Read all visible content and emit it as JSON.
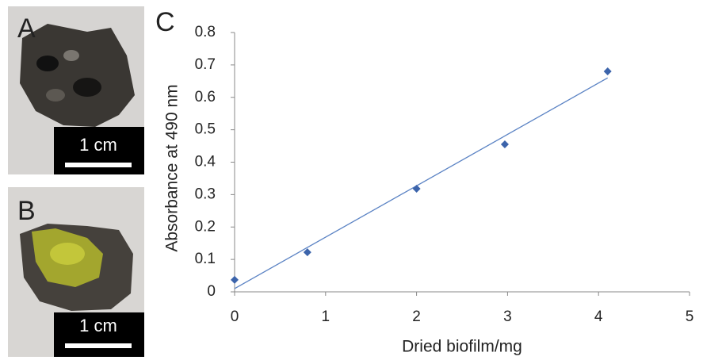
{
  "panels": [
    {
      "label": "A",
      "scale_bar": "1 cm"
    },
    {
      "label": "B",
      "scale_bar": "1 cm"
    }
  ],
  "chart_data": {
    "type": "scatter",
    "panel_label": "C",
    "x_label": "Dried biofilm/mg",
    "y_label": "Absorbance at 490 nm",
    "x": [
      0,
      0.8,
      2,
      2.97,
      4.1
    ],
    "values": [
      0.037,
      0.122,
      0.318,
      0.455,
      0.68
    ],
    "color": "#3c64ab",
    "trendline": {
      "x": [
        0,
        4.1
      ],
      "values": [
        0.01,
        0.66
      ],
      "color": "#5b83c4"
    },
    "xlim": [
      0,
      5
    ],
    "xticks": [
      0,
      1,
      2,
      3,
      4,
      5
    ],
    "ylim": [
      0,
      0.8
    ],
    "yticks": [
      0,
      0.1,
      0.2,
      0.3,
      0.4,
      0.5,
      0.6,
      0.7,
      0.8
    ],
    "grid": false
  }
}
